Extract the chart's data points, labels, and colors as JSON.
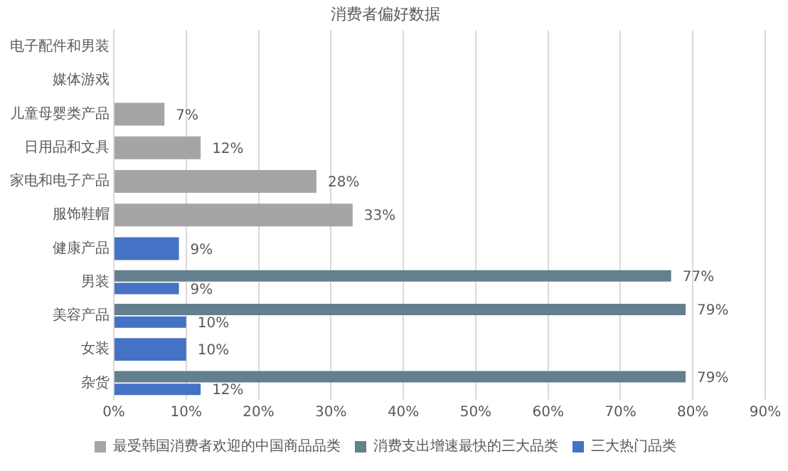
{
  "chart_data": {
    "type": "bar",
    "orientation": "horizontal",
    "title": "消费者偏好数据",
    "categories": [
      "电子配件和男装",
      "媒体游戏",
      "儿童母婴类产品",
      "日用品和文具",
      "家电和电子产品",
      "服饰鞋帽",
      "健康产品",
      "男装",
      "美容产品",
      "女装",
      "杂货"
    ],
    "series": [
      {
        "name": "最受韩国消费者欢迎的中国商品品类",
        "color": "#a5a5a5",
        "values": [
          null,
          null,
          7,
          12,
          28,
          33,
          null,
          null,
          null,
          null,
          null
        ],
        "value_labels": [
          null,
          null,
          "7%",
          "12%",
          "28%",
          "33%",
          null,
          null,
          null,
          null,
          null
        ]
      },
      {
        "name": "消费支出增速最快的三大品类",
        "color": "#647f8d",
        "values": [
          null,
          null,
          null,
          null,
          null,
          null,
          null,
          77,
          79,
          null,
          79
        ],
        "value_labels": [
          null,
          null,
          null,
          null,
          null,
          null,
          null,
          "77%",
          "79%",
          null,
          "79%"
        ]
      },
      {
        "name": "三大热门品类",
        "color": "#4472c4",
        "values": [
          null,
          null,
          null,
          null,
          null,
          null,
          9,
          9,
          10,
          10,
          12
        ],
        "value_labels": [
          null,
          null,
          null,
          null,
          null,
          null,
          "9%",
          "9%",
          "10%",
          "10%",
          "12%"
        ]
      }
    ],
    "xlim": [
      0,
      90
    ],
    "xticks": [
      {
        "value": 0,
        "label": "0%"
      },
      {
        "value": 10,
        "label": "10%"
      },
      {
        "value": 20,
        "label": "20%"
      },
      {
        "value": 30,
        "label": "30%"
      },
      {
        "value": 40,
        "label": "40%"
      },
      {
        "value": 50,
        "label": "50%"
      },
      {
        "value": 60,
        "label": "60%"
      },
      {
        "value": 70,
        "label": "70%"
      },
      {
        "value": 80,
        "label": "80%"
      },
      {
        "value": 90,
        "label": "90%"
      }
    ],
    "grid": "x",
    "legend": "bottom"
  }
}
